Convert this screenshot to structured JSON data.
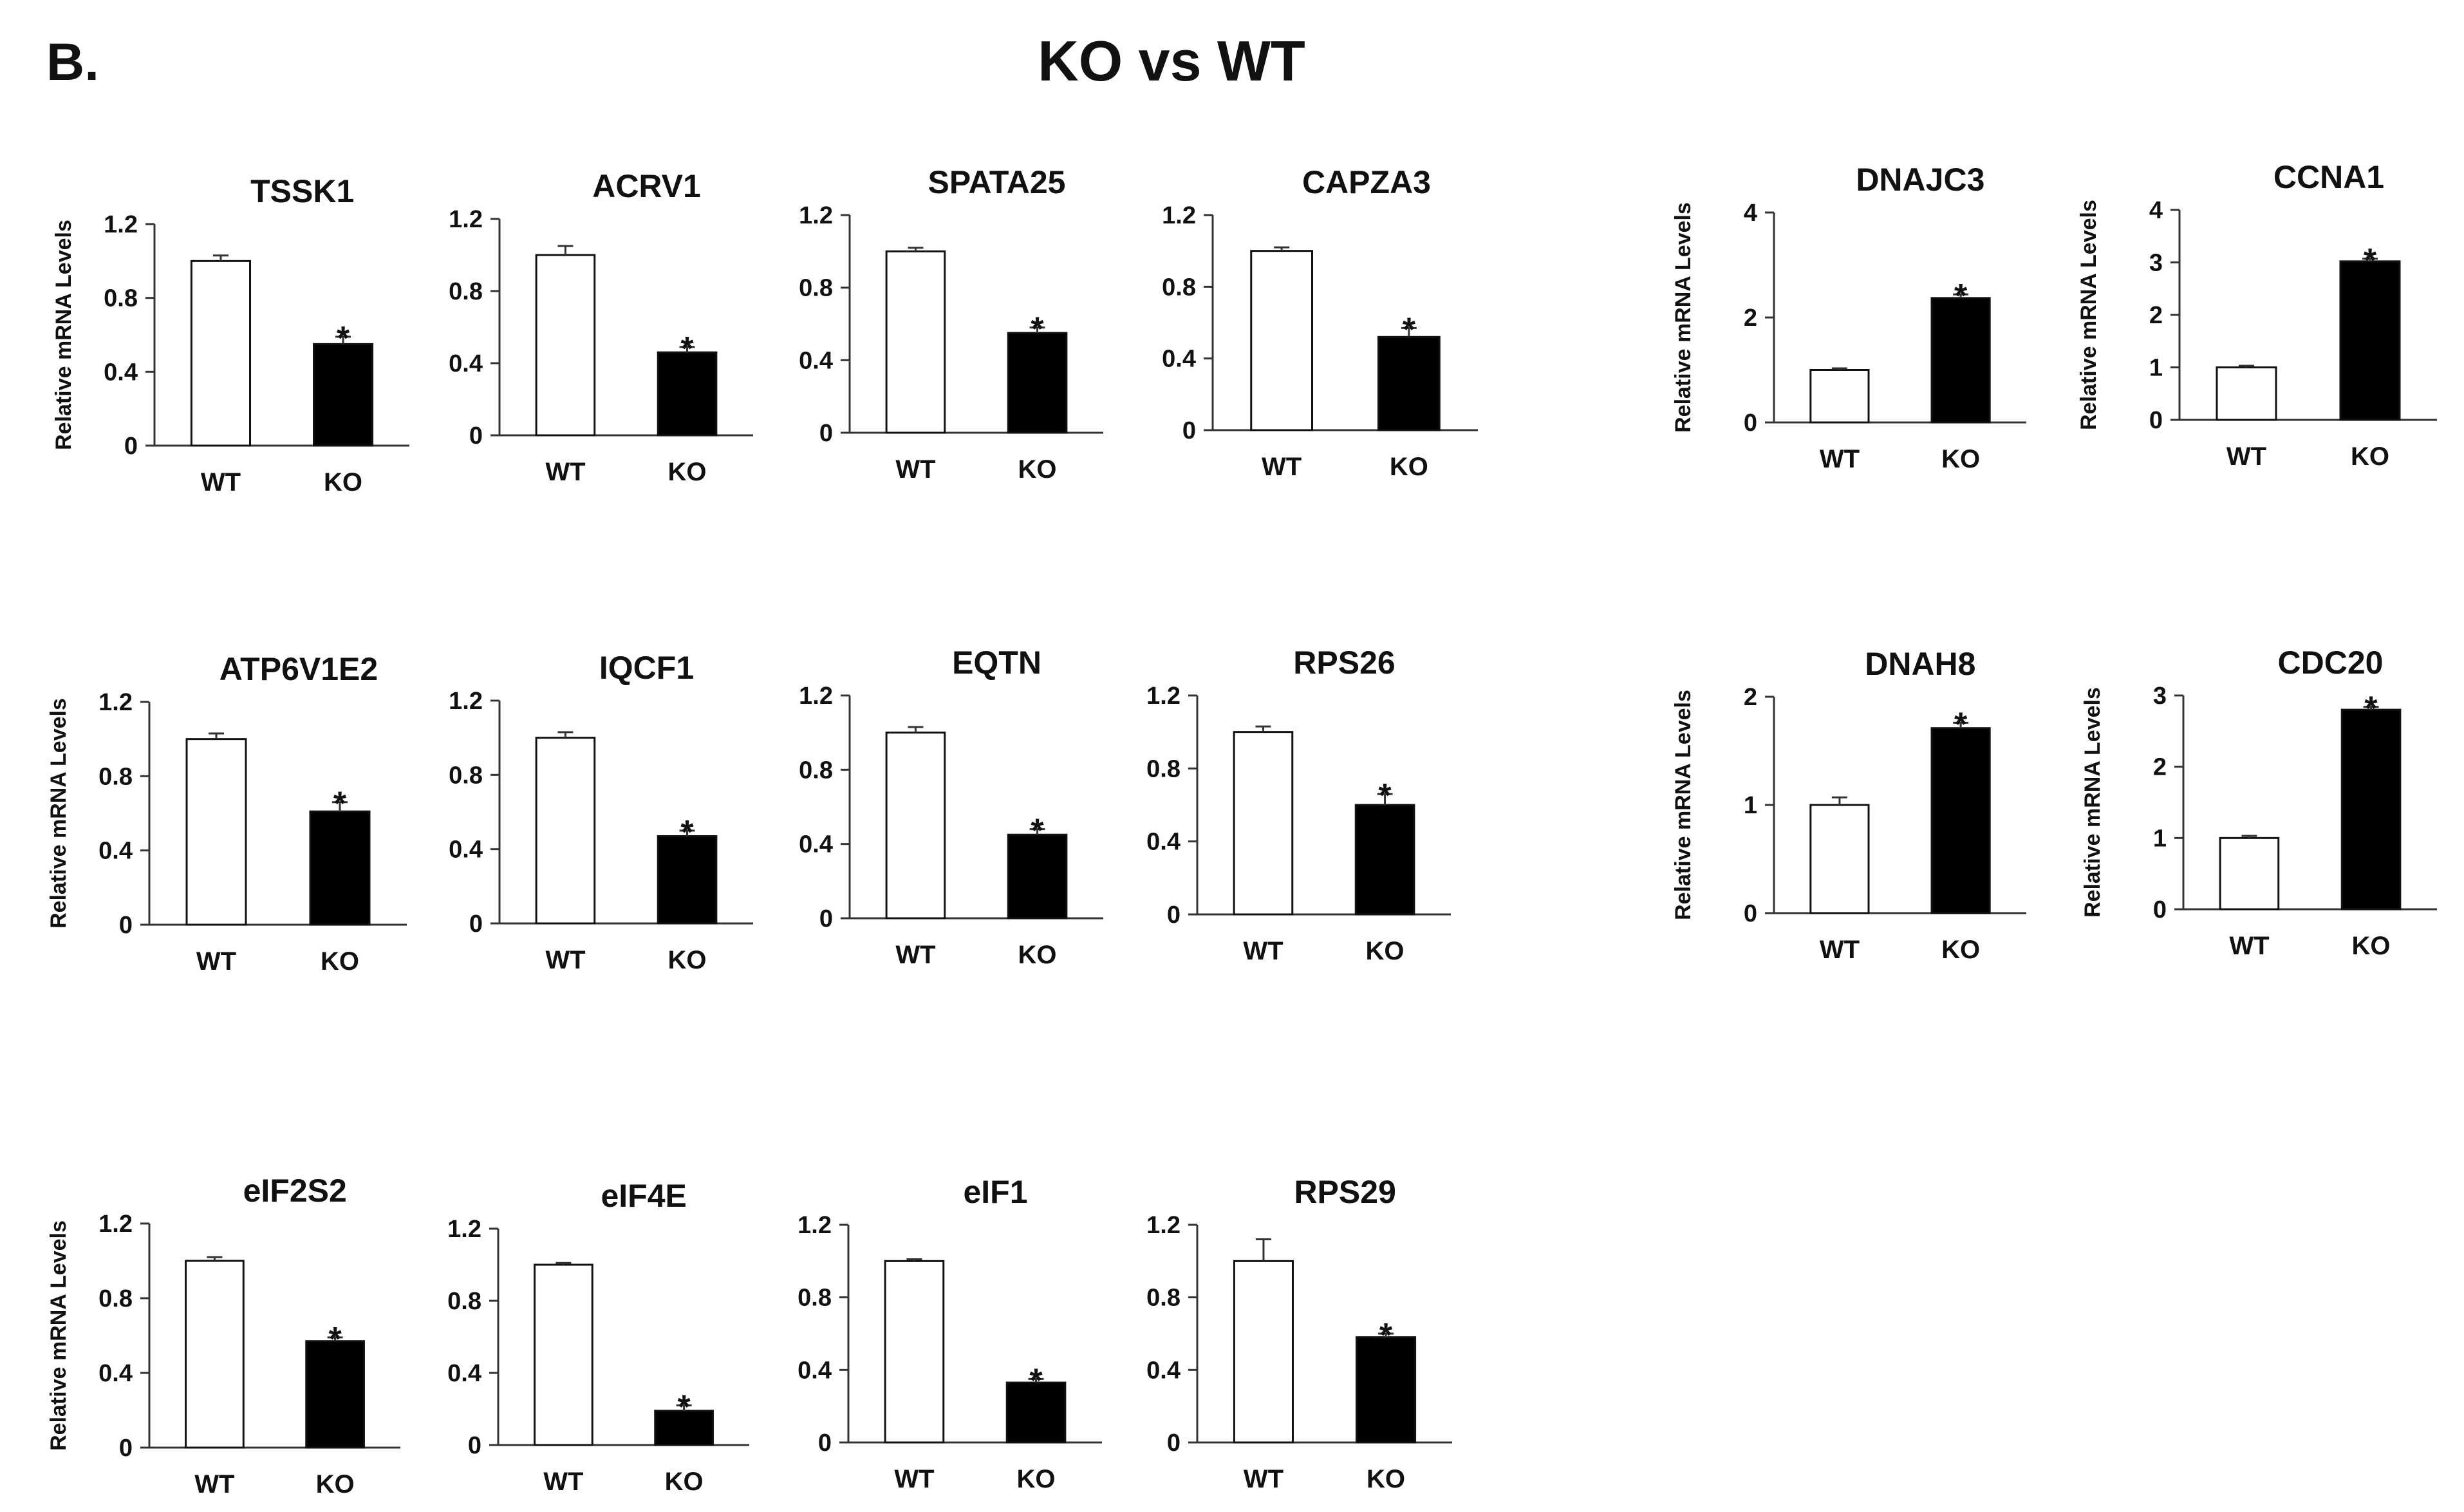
{
  "figure": {
    "panel_label": "B.",
    "title": "KO vs WT"
  },
  "chart_data": [
    {
      "type": "bar",
      "title": "TSSK1",
      "ylabel": "Relative mRNA Levels",
      "categories": [
        "WT",
        "KO"
      ],
      "values": [
        1.0,
        0.55
      ],
      "errors": [
        0.03,
        0.04
      ],
      "significant": [
        false,
        true
      ],
      "ylim": [
        0,
        1.2
      ],
      "yticks": [
        0,
        0.4,
        0.8,
        1.2
      ],
      "yticklabels": [
        "0",
        "0.4",
        "0.8",
        "1.2"
      ],
      "colors": [
        "#ffffff",
        "#000000"
      ]
    },
    {
      "type": "bar",
      "title": "ACRV1",
      "ylabel": "",
      "categories": [
        "WT",
        "KO"
      ],
      "values": [
        1.0,
        0.46
      ],
      "errors": [
        0.05,
        0.03
      ],
      "significant": [
        false,
        true
      ],
      "ylim": [
        0,
        1.2
      ],
      "yticks": [
        0,
        0.4,
        0.8,
        1.2
      ],
      "yticklabels": [
        "0",
        "0.4",
        "0.8",
        "1.2"
      ],
      "colors": [
        "#ffffff",
        "#000000"
      ]
    },
    {
      "type": "bar",
      "title": "SPATA25",
      "ylabel": "",
      "categories": [
        "WT",
        "KO"
      ],
      "values": [
        1.0,
        0.55
      ],
      "errors": [
        0.02,
        0.03
      ],
      "significant": [
        false,
        true
      ],
      "ylim": [
        0,
        1.2
      ],
      "yticks": [
        0,
        0.4,
        0.8,
        1.2
      ],
      "yticklabels": [
        "0",
        "0.4",
        "0.8",
        "1.2"
      ],
      "colors": [
        "#ffffff",
        "#000000"
      ]
    },
    {
      "type": "bar",
      "title": "CAPZA3",
      "ylabel": "",
      "categories": [
        "WT",
        "KO"
      ],
      "values": [
        1.0,
        0.52
      ],
      "errors": [
        0.02,
        0.05
      ],
      "significant": [
        false,
        true
      ],
      "ylim": [
        0,
        1.2
      ],
      "yticks": [
        0,
        0.4,
        0.8,
        1.2
      ],
      "yticklabels": [
        "0",
        "0.4",
        "0.8",
        "1.2"
      ],
      "colors": [
        "#ffffff",
        "#000000"
      ]
    },
    {
      "type": "bar",
      "title": "DNAJC3",
      "ylabel": "Relative mRNA Levels",
      "categories": [
        "WT",
        "KO"
      ],
      "values": [
        1.0,
        2.37
      ],
      "errors": [
        0.03,
        0.07
      ],
      "significant": [
        false,
        true
      ],
      "ylim": [
        0,
        4
      ],
      "yticks": [
        0,
        2,
        4
      ],
      "yticklabels": [
        "0",
        "2",
        "4"
      ],
      "colors": [
        "#ffffff",
        "#000000"
      ]
    },
    {
      "type": "bar",
      "title": "CCNA1",
      "ylabel": "Relative mRNA Levels",
      "categories": [
        "WT",
        "KO"
      ],
      "values": [
        1.0,
        3.02
      ],
      "errors": [
        0.03,
        0.05
      ],
      "significant": [
        false,
        true
      ],
      "ylim": [
        0,
        4
      ],
      "yticks": [
        0,
        1,
        2,
        3,
        4
      ],
      "yticklabels": [
        "0",
        "1",
        "2",
        "3",
        "4"
      ],
      "colors": [
        "#ffffff",
        "#000000"
      ]
    },
    {
      "type": "bar",
      "title": "ATP6V1E2",
      "ylabel": "Relative mRNA Levels",
      "categories": [
        "WT",
        "KO"
      ],
      "values": [
        1.0,
        0.61
      ],
      "errors": [
        0.03,
        0.05
      ],
      "significant": [
        false,
        true
      ],
      "ylim": [
        0,
        1.2
      ],
      "yticks": [
        0,
        0.4,
        0.8,
        1.2
      ],
      "yticklabels": [
        "0",
        "0.4",
        "0.8",
        "1.2"
      ],
      "colors": [
        "#ffffff",
        "#000000"
      ]
    },
    {
      "type": "bar",
      "title": "IQCF1",
      "ylabel": "",
      "categories": [
        "WT",
        "KO"
      ],
      "values": [
        1.0,
        0.47
      ],
      "errors": [
        0.03,
        0.03
      ],
      "significant": [
        false,
        true
      ],
      "ylim": [
        0,
        1.2
      ],
      "yticks": [
        0,
        0.4,
        0.8,
        1.2
      ],
      "yticklabels": [
        "0",
        "0.4",
        "0.8",
        "1.2"
      ],
      "colors": [
        "#ffffff",
        "#000000"
      ]
    },
    {
      "type": "bar",
      "title": "EQTN",
      "ylabel": "",
      "categories": [
        "WT",
        "KO"
      ],
      "values": [
        1.0,
        0.45
      ],
      "errors": [
        0.03,
        0.03
      ],
      "significant": [
        false,
        true
      ],
      "ylim": [
        0,
        1.2
      ],
      "yticks": [
        0,
        0.4,
        0.8,
        1.2
      ],
      "yticklabels": [
        "0",
        "0.4",
        "0.8",
        "1.2"
      ],
      "colors": [
        "#ffffff",
        "#000000"
      ]
    },
    {
      "type": "bar",
      "title": "RPS26",
      "ylabel": "",
      "categories": [
        "WT",
        "KO"
      ],
      "values": [
        1.0,
        0.6
      ],
      "errors": [
        0.03,
        0.06
      ],
      "significant": [
        false,
        true
      ],
      "ylim": [
        0,
        1.2
      ],
      "yticks": [
        0,
        0.4,
        0.8,
        1.2
      ],
      "yticklabels": [
        "0",
        "0.4",
        "0.8",
        "1.2"
      ],
      "colors": [
        "#ffffff",
        "#000000"
      ]
    },
    {
      "type": "bar",
      "title": "DNAH8",
      "ylabel": "Relative mRNA Levels",
      "categories": [
        "WT",
        "KO"
      ],
      "values": [
        1.0,
        1.71
      ],
      "errors": [
        0.07,
        0.05
      ],
      "significant": [
        false,
        true
      ],
      "ylim": [
        0,
        2
      ],
      "yticks": [
        0,
        1,
        2
      ],
      "yticklabels": [
        "0",
        "1",
        "2"
      ],
      "colors": [
        "#ffffff",
        "#000000"
      ]
    },
    {
      "type": "bar",
      "title": "CDC20",
      "ylabel": "Relative mRNA Levels",
      "categories": [
        "WT",
        "KO"
      ],
      "values": [
        1.0,
        2.8
      ],
      "errors": [
        0.03,
        0.04
      ],
      "significant": [
        false,
        true
      ],
      "ylim": [
        0,
        3
      ],
      "yticks": [
        0,
        1,
        2,
        3
      ],
      "yticklabels": [
        "0",
        "1",
        "2",
        "3"
      ],
      "colors": [
        "#ffffff",
        "#000000"
      ]
    },
    {
      "type": "bar",
      "title": "eIF2S2",
      "ylabel": "Relative mRNA Levels",
      "categories": [
        "WT",
        "KO"
      ],
      "values": [
        1.0,
        0.57
      ],
      "errors": [
        0.02,
        0.02
      ],
      "significant": [
        false,
        true
      ],
      "ylim": [
        0,
        1.2
      ],
      "yticks": [
        0,
        0.4,
        0.8,
        1.2
      ],
      "yticklabels": [
        "0",
        "0.4",
        "0.8",
        "1.2"
      ],
      "colors": [
        "#ffffff",
        "#000000"
      ]
    },
    {
      "type": "bar",
      "title": "eIF4E",
      "ylabel": "",
      "categories": [
        "WT",
        "KO"
      ],
      "values": [
        1.0,
        0.19
      ],
      "errors": [
        0.01,
        0.03
      ],
      "significant": [
        false,
        true
      ],
      "ylim": [
        0,
        1.2
      ],
      "yticks": [
        0,
        0.4,
        0.8,
        1.2
      ],
      "yticklabels": [
        "0",
        "0.4",
        "0.8",
        "1.2"
      ],
      "colors": [
        "#ffffff",
        "#000000"
      ]
    },
    {
      "type": "bar",
      "title": "eIF1",
      "ylabel": "",
      "categories": [
        "WT",
        "KO"
      ],
      "values": [
        1.0,
        0.33
      ],
      "errors": [
        0.01,
        0.02
      ],
      "significant": [
        false,
        true
      ],
      "ylim": [
        0,
        1.2
      ],
      "yticks": [
        0,
        0.4,
        0.8,
        1.2
      ],
      "yticklabels": [
        "0",
        "0.4",
        "0.8",
        "1.2"
      ],
      "colors": [
        "#ffffff",
        "#000000"
      ]
    },
    {
      "type": "bar",
      "title": "RPS29",
      "ylabel": "",
      "categories": [
        "WT",
        "KO"
      ],
      "values": [
        1.0,
        0.58
      ],
      "errors": [
        0.12,
        0.02
      ],
      "significant": [
        false,
        true
      ],
      "ylim": [
        0,
        1.2
      ],
      "yticks": [
        0,
        0.4,
        0.8,
        1.2
      ],
      "yticklabels": [
        "0",
        "0.4",
        "0.8",
        "1.2"
      ],
      "colors": [
        "#ffffff",
        "#000000"
      ]
    }
  ]
}
